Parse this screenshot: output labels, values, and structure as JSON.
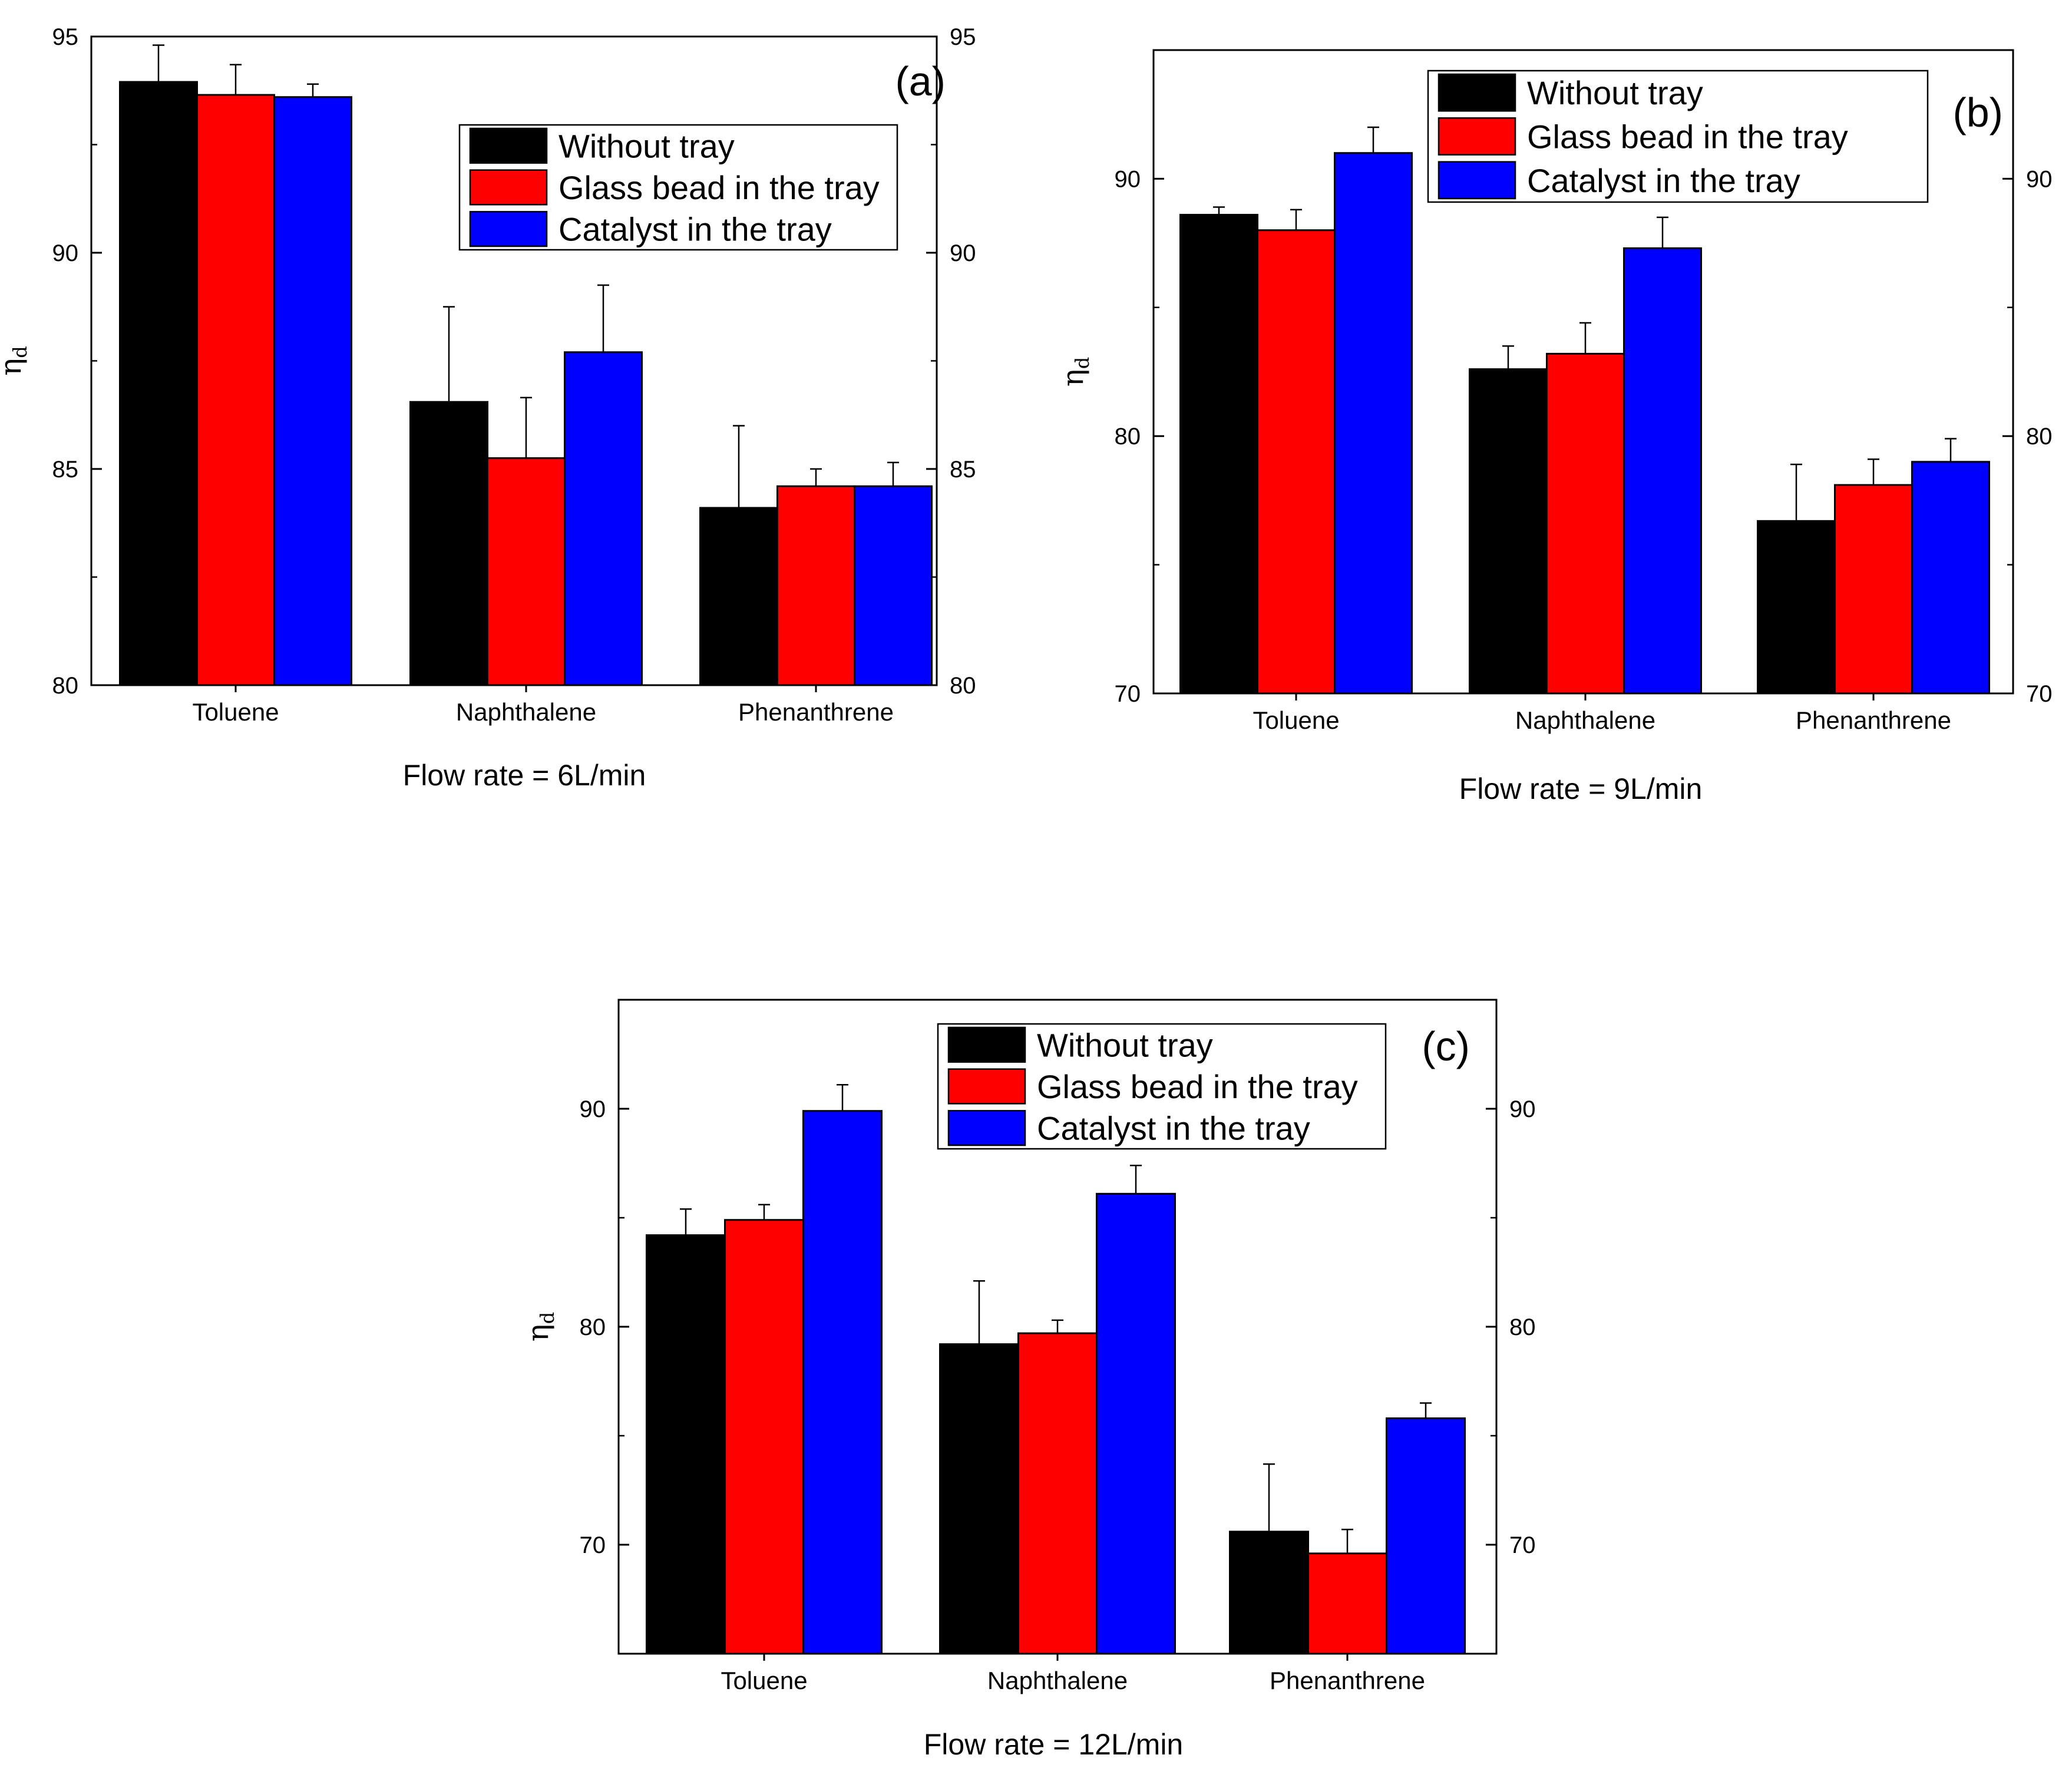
{
  "chart_data": [
    {
      "type": "bar",
      "panel_label": "(a)",
      "caption": "Flow rate = 6L/min",
      "ylabel": "η",
      "ylabel_sub": "d",
      "xlabel": "",
      "ylim": [
        80,
        95
      ],
      "yticks": [
        80,
        85,
        90,
        95
      ],
      "ytick_labels": [
        "80",
        "85",
        "90",
        "95"
      ],
      "minor_step": 2.5,
      "categories": [
        "Toluene",
        "Naphthalene",
        "Phenanthrene"
      ],
      "legend_position": "upper-center",
      "series": [
        {
          "name": "Without tray",
          "color": "#000000",
          "values": [
            93.95,
            86.55,
            84.1
          ],
          "errors": [
            0.85,
            2.2,
            1.9
          ]
        },
        {
          "name": "Glass bead in the tray",
          "color": "#ff0000",
          "values": [
            93.65,
            85.25,
            84.6
          ],
          "errors": [
            0.7,
            1.4,
            0.4
          ]
        },
        {
          "name": "Catalyst in the tray",
          "color": "#0000ff",
          "values": [
            93.6,
            87.7,
            84.6
          ],
          "errors": [
            0.3,
            1.55,
            0.55
          ]
        }
      ]
    },
    {
      "type": "bar",
      "panel_label": "(b)",
      "caption": "Flow rate = 9L/min",
      "ylabel": "η",
      "ylabel_sub": "d",
      "xlabel": "",
      "ylim": [
        70,
        95
      ],
      "yticks": [
        70,
        80,
        90
      ],
      "ytick_labels": [
        "70",
        "80",
        "90"
      ],
      "minor_step": 5,
      "categories": [
        "Toluene",
        "Naphthalene",
        "Phenanthrene"
      ],
      "legend_position": "top-right",
      "series": [
        {
          "name": "Without tray",
          "color": "#000000",
          "values": [
            88.6,
            82.6,
            76.7
          ],
          "errors": [
            0.3,
            0.9,
            2.2
          ]
        },
        {
          "name": "Glass bead in the tray",
          "color": "#ff0000",
          "values": [
            88.0,
            83.2,
            78.1
          ],
          "errors": [
            0.8,
            1.2,
            1.0
          ]
        },
        {
          "name": "Catalyst in the tray",
          "color": "#0000ff",
          "values": [
            91.0,
            87.3,
            79.0
          ],
          "errors": [
            1.0,
            1.2,
            0.9
          ]
        }
      ]
    },
    {
      "type": "bar",
      "panel_label": "(c)",
      "caption": "Flow rate = 12L/min",
      "ylabel": "η",
      "ylabel_sub": "d",
      "xlabel": "",
      "ylim": [
        65,
        95
      ],
      "yticks": [
        70,
        80,
        90
      ],
      "ytick_labels": [
        "70",
        "80",
        "90"
      ],
      "minor_step": 5,
      "categories": [
        "Toluene",
        "Naphthalene",
        "Phenanthrene"
      ],
      "legend_position": "top-right",
      "series": [
        {
          "name": "Without tray",
          "color": "#000000",
          "values": [
            84.2,
            79.2,
            70.6
          ],
          "errors": [
            1.2,
            2.9,
            3.1
          ]
        },
        {
          "name": "Glass bead in the tray",
          "color": "#ff0000",
          "values": [
            84.9,
            79.7,
            69.6
          ],
          "errors": [
            0.7,
            0.6,
            1.1
          ]
        },
        {
          "name": "Catalyst in the tray",
          "color": "#0000ff",
          "values": [
            89.9,
            86.1,
            75.8
          ],
          "errors": [
            1.2,
            1.3,
            0.7
          ]
        }
      ]
    }
  ]
}
